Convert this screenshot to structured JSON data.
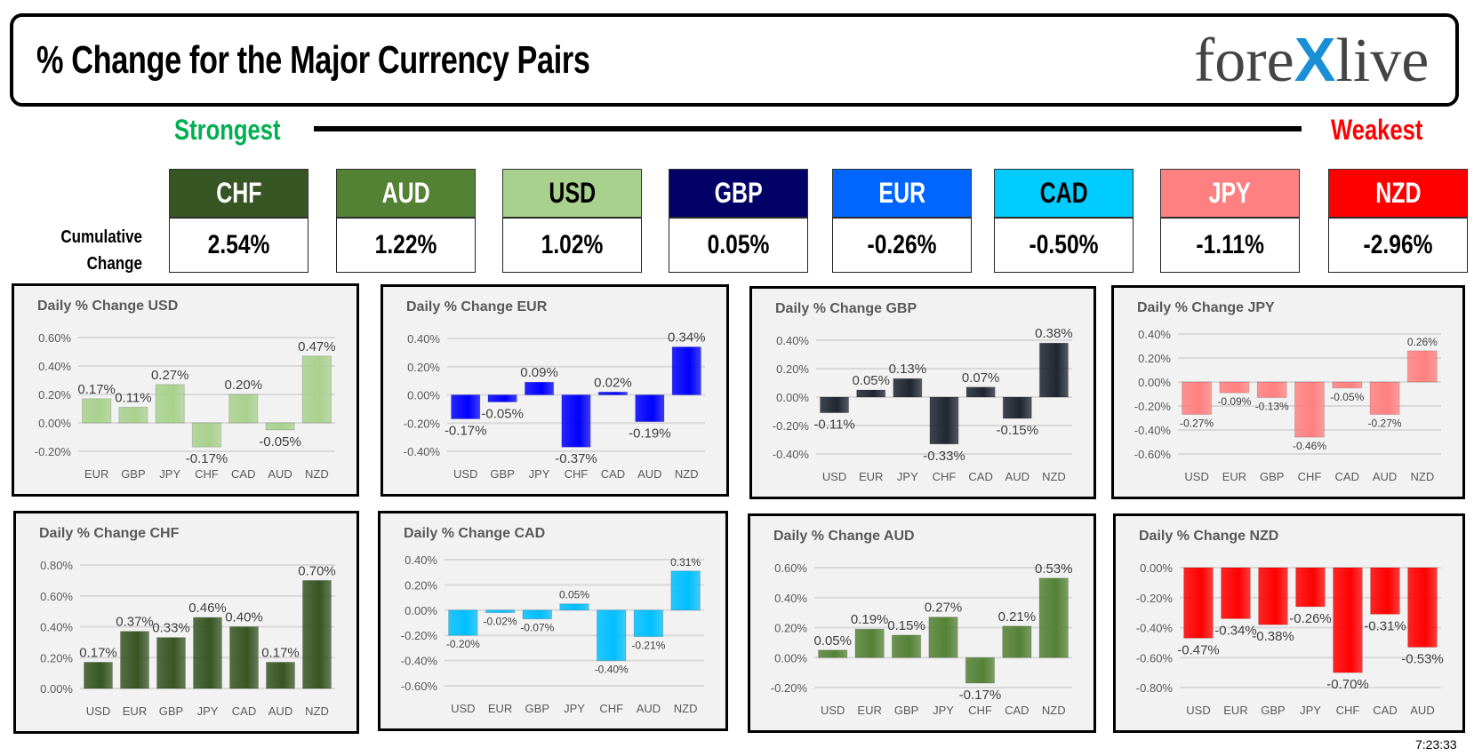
{
  "header": {
    "title": "% Change for the Major Currency Pairs",
    "logo": "forexlive"
  },
  "scale": {
    "strongest": "Strongest",
    "weakest": "Weakest"
  },
  "cumulative_label": [
    "Cumulative",
    "Change"
  ],
  "ranking": [
    {
      "ccy": "CHF",
      "value": "2.54%",
      "color": "#375623",
      "text": "#ffffff"
    },
    {
      "ccy": "AUD",
      "value": "1.22%",
      "color": "#548235",
      "text": "#ffffff"
    },
    {
      "ccy": "USD",
      "value": "1.02%",
      "color": "#a9d18e",
      "text": "#000000"
    },
    {
      "ccy": "GBP",
      "value": "0.05%",
      "color": "#000066",
      "text": "#ffffff"
    },
    {
      "ccy": "EUR",
      "value": "-0.26%",
      "color": "#0066ff",
      "text": "#ffffff"
    },
    {
      "ccy": "CAD",
      "value": "-0.50%",
      "color": "#00ccff",
      "text": "#000000"
    },
    {
      "ccy": "JPY",
      "value": "-1.11%",
      "color": "#ff8080",
      "text": "#ffffff"
    },
    {
      "ccy": "NZD",
      "value": "-2.96%",
      "color": "#ff0000",
      "text": "#ffffff"
    }
  ],
  "timestamp": "7:23:33",
  "chart_data": [
    {
      "type": "bar",
      "title": "Daily % Change USD",
      "color": "#a9d18e",
      "categories": [
        "EUR",
        "GBP",
        "JPY",
        "CHF",
        "CAD",
        "AUD",
        "NZD"
      ],
      "values": [
        0.17,
        0.11,
        0.27,
        -0.17,
        0.2,
        -0.05,
        0.47
      ],
      "ylim": [
        -0.2,
        0.6
      ],
      "yticks": [
        "-0.20%",
        "0.00%",
        "0.20%",
        "0.40%",
        "0.60%"
      ],
      "grid": true
    },
    {
      "type": "bar",
      "title": "Daily % Change EUR",
      "color": "#0000ff",
      "categories": [
        "USD",
        "GBP",
        "JPY",
        "CHF",
        "CAD",
        "AUD",
        "NZD"
      ],
      "values": [
        -0.17,
        -0.05,
        0.09,
        -0.37,
        0.02,
        -0.19,
        0.34
      ],
      "ylim": [
        -0.4,
        0.4
      ],
      "yticks": [
        "-0.40%",
        "-0.20%",
        "0.00%",
        "0.20%",
        "0.40%"
      ],
      "grid": true
    },
    {
      "type": "bar",
      "title": "Daily % Change GBP",
      "color": "#1f2631",
      "categories": [
        "USD",
        "EUR",
        "JPY",
        "CHF",
        "CAD",
        "AUD",
        "NZD"
      ],
      "values": [
        -0.11,
        0.05,
        0.13,
        -0.33,
        0.07,
        -0.15,
        0.38
      ],
      "ylim": [
        -0.4,
        0.4
      ],
      "yticks": [
        "-0.40%",
        "-0.20%",
        "0.00%",
        "0.20%",
        "0.40%"
      ],
      "grid": true
    },
    {
      "type": "bar",
      "title": "Daily % Change JPY",
      "color": "#ff8080",
      "categories": [
        "USD",
        "EUR",
        "GBP",
        "CHF",
        "CAD",
        "AUD",
        "NZD"
      ],
      "values": [
        -0.27,
        -0.09,
        -0.13,
        -0.46,
        -0.05,
        -0.27,
        0.26
      ],
      "ylim": [
        -0.6,
        0.4
      ],
      "yticks": [
        "-0.60%",
        "-0.40%",
        "-0.20%",
        "0.00%",
        "0.20%",
        "0.40%"
      ],
      "grid": true
    },
    {
      "type": "bar",
      "title": "Daily % Change CHF",
      "color": "#375623",
      "categories": [
        "USD",
        "EUR",
        "GBP",
        "JPY",
        "CAD",
        "AUD",
        "NZD"
      ],
      "values": [
        0.17,
        0.37,
        0.33,
        0.46,
        0.4,
        0.17,
        0.7
      ],
      "ylim": [
        0,
        0.8
      ],
      "yticks": [
        "0.00%",
        "0.20%",
        "0.40%",
        "0.60%",
        "0.80%"
      ],
      "grid": true
    },
    {
      "type": "bar",
      "title": "Daily % Change CAD",
      "color": "#00bfff",
      "categories": [
        "USD",
        "EUR",
        "GBP",
        "JPY",
        "CHF",
        "AUD",
        "NZD"
      ],
      "values": [
        -0.2,
        -0.02,
        -0.07,
        0.05,
        -0.4,
        -0.21,
        0.31
      ],
      "ylim": [
        -0.6,
        0.4
      ],
      "yticks": [
        "-0.60%",
        "-0.40%",
        "-0.20%",
        "0.00%",
        "0.20%",
        "0.40%"
      ],
      "grid": true
    },
    {
      "type": "bar",
      "title": "Daily % Change AUD",
      "color": "#548235",
      "categories": [
        "USD",
        "EUR",
        "GBP",
        "JPY",
        "CHF",
        "CAD",
        "NZD"
      ],
      "values": [
        0.05,
        0.19,
        0.15,
        0.27,
        -0.17,
        0.21,
        0.53
      ],
      "ylim": [
        -0.2,
        0.6
      ],
      "yticks": [
        "-0.20%",
        "0.00%",
        "0.20%",
        "0.40%",
        "0.60%"
      ],
      "grid": true
    },
    {
      "type": "bar",
      "title": "Daily % Change NZD",
      "color": "#ff0000",
      "categories": [
        "USD",
        "EUR",
        "GBP",
        "JPY",
        "CHF",
        "CAD",
        "AUD"
      ],
      "values": [
        -0.47,
        -0.34,
        -0.38,
        -0.26,
        -0.7,
        -0.31,
        -0.53
      ],
      "ylim": [
        -0.8,
        0
      ],
      "yticks": [
        "-0.80%",
        "-0.60%",
        "-0.40%",
        "-0.20%",
        "0.00%"
      ],
      "grid": true
    }
  ]
}
